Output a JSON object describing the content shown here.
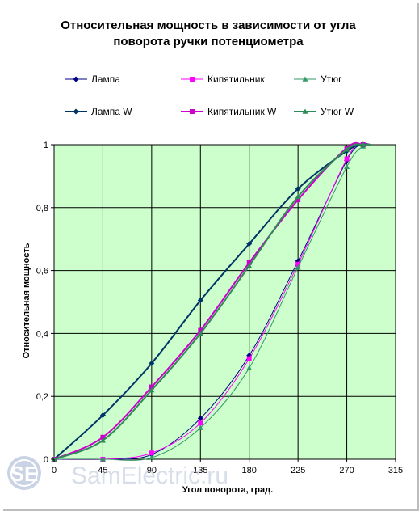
{
  "chart_data": {
    "type": "line",
    "title": "Относительная мощность в зависимости от угла поворота ручки потенциометра",
    "title_lines": [
      "Относительная мощность в зависимости от угла",
      "поворота ручки потенциометра"
    ],
    "xlabel": "Угол поворота, град.",
    "ylabel": "Относительная мощность",
    "xlim": [
      0,
      315
    ],
    "ylim": [
      0,
      1
    ],
    "x_ticks": [
      {
        "value": 0,
        "label": "0"
      },
      {
        "value": 45,
        "label": "45"
      },
      {
        "value": 90,
        "label": "90"
      },
      {
        "value": 135,
        "label": "135"
      },
      {
        "value": 180,
        "label": "180"
      },
      {
        "value": 225,
        "label": "225"
      },
      {
        "value": 270,
        "label": "270"
      },
      {
        "value": 315,
        "label": "315"
      }
    ],
    "y_ticks": [
      {
        "value": 0,
        "label": "0"
      },
      {
        "value": 0.2,
        "label": "0,2"
      },
      {
        "value": 0.4,
        "label": "0,4"
      },
      {
        "value": 0.6,
        "label": "0,6"
      },
      {
        "value": 0.8,
        "label": "0,8"
      },
      {
        "value": 1,
        "label": "1"
      }
    ],
    "grid": true,
    "plot_background": "#ccffcc",
    "legend_position": "top",
    "series": [
      {
        "name": "Лампа",
        "color": "#000080",
        "marker": "diamond",
        "thin": true,
        "x": [
          0,
          45,
          90,
          135,
          180,
          225,
          270,
          285,
          292
        ],
        "y": [
          0,
          0,
          0.015,
          0.13,
          0.33,
          0.63,
          0.95,
          1.0,
          1.0
        ]
      },
      {
        "name": "Кипятильник",
        "color": "#ff00ff",
        "marker": "square",
        "thin": true,
        "x": [
          0,
          45,
          90,
          135,
          180,
          225,
          270,
          285,
          292
        ],
        "y": [
          0,
          0,
          0.02,
          0.115,
          0.32,
          0.62,
          0.955,
          1.0,
          1.0
        ]
      },
      {
        "name": "Утюг",
        "color": "#339966",
        "marker": "triangle",
        "thin": true,
        "x": [
          0,
          45,
          90,
          135,
          180,
          225,
          270,
          285,
          292
        ],
        "y": [
          0,
          0,
          0.005,
          0.1,
          0.29,
          0.61,
          0.93,
          0.995,
          1.0
        ]
      },
      {
        "name": "Лампа W",
        "color": "#003366",
        "marker": "diamond",
        "thin": false,
        "x": [
          0,
          45,
          90,
          135,
          180,
          225,
          270,
          285,
          292
        ],
        "y": [
          0,
          0.14,
          0.305,
          0.505,
          0.685,
          0.86,
          0.98,
          1.0,
          1.0
        ]
      },
      {
        "name": "Кипятильник W",
        "color": "#cc00cc",
        "marker": "square",
        "thin": false,
        "x": [
          0,
          45,
          90,
          135,
          180,
          225,
          270,
          285,
          292
        ],
        "y": [
          0,
          0.07,
          0.23,
          0.41,
          0.625,
          0.825,
          0.99,
          1.0,
          1.0
        ]
      },
      {
        "name": "Утюг W",
        "color": "#2e8b57",
        "marker": "triangle",
        "thin": false,
        "x": [
          0,
          45,
          90,
          135,
          180,
          225,
          270,
          285,
          292
        ],
        "y": [
          0,
          0.06,
          0.22,
          0.4,
          0.615,
          0.835,
          0.985,
          1.0,
          1.0
        ]
      }
    ]
  },
  "watermark": {
    "logo_text": "SE",
    "site_text": "SamElectric.ru"
  }
}
